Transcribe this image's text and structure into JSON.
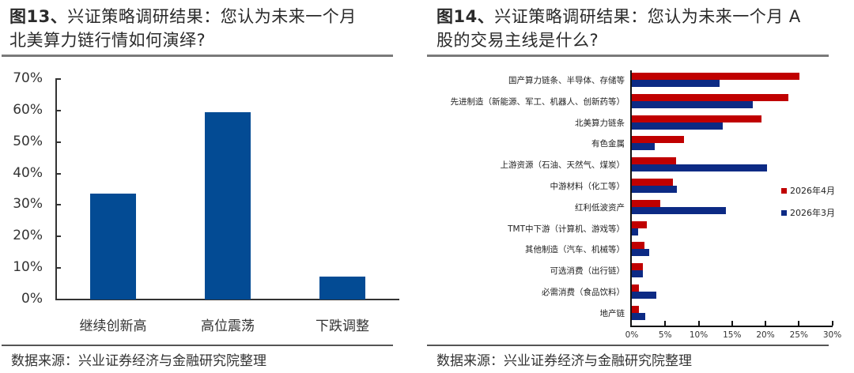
{
  "left": {
    "title_prefix": "图13、",
    "title_line1": "兴证策略调研结果：您认为未来一个月",
    "title_line2": "北美算力链行情如何演绎?",
    "source": "数据来源：兴业证券经济与金融研究院整理",
    "y_ticks": [
      "70%",
      "60%",
      "50%",
      "40%",
      "30%",
      "20%",
      "10%",
      "0%"
    ]
  },
  "right": {
    "title_prefix": "图14、",
    "title_line1": "兴证策略调研结果：您认为未来一个月 A",
    "title_line2": "股的交易主线是什么?",
    "source": "数据来源：兴业证券经济与金融研究院整理",
    "x_ticks": [
      "0%",
      "5%",
      "10%",
      "15%",
      "20%",
      "25%",
      "30%"
    ],
    "legend": [
      {
        "label": "2026年4月",
        "color": "#c00000"
      },
      {
        "label": "2026年3月",
        "color": "#0c2a84"
      }
    ]
  },
  "chart_data": [
    {
      "type": "bar",
      "title": "图13、兴证策略调研结果：您认为未来一个月北美算力链行情如何演绎?",
      "categories": [
        "继续创新高",
        "高位震荡",
        "下跌调整"
      ],
      "values": [
        33.5,
        59.5,
        7.3
      ],
      "xlabel": "",
      "ylabel": "",
      "ylim": [
        0,
        70
      ],
      "y_unit": "%",
      "y_ticks": [
        0,
        10,
        20,
        30,
        40,
        50,
        60,
        70
      ],
      "grid": false,
      "color": "#034b94"
    },
    {
      "type": "bar",
      "orientation": "horizontal",
      "title": "图14、兴证策略调研结果：您认为未来一个月 A 股的交易主线是什么?",
      "categories": [
        "国产算力链条、半导体、存储等",
        "先进制造（新能源、军工、机器人、创新药等）",
        "北美算力链条",
        "有色金属",
        "上游资源（石油、天然气、煤炭）",
        "中游材料（化工等）",
        "红利低波资产",
        "TMT中下游（计算机、游戏等）",
        "其他制造（汽车、机械等）",
        "可选消费（出行链）",
        "必需消费（食品饮料）",
        "地产链"
      ],
      "series": [
        {
          "name": "2026年4月",
          "color": "#c00000",
          "values": [
            25.1,
            23.4,
            19.4,
            7.8,
            6.6,
            6.1,
            4.3,
            2.2,
            1.9,
            1.7,
            1.1,
            1.1
          ]
        },
        {
          "name": "2026年3月",
          "color": "#0c2a84",
          "values": [
            13.1,
            18.1,
            13.6,
            3.4,
            20.2,
            6.8,
            14.1,
            1.0,
            2.6,
            1.6,
            3.7,
            2.0
          ]
        }
      ],
      "xlim": [
        0,
        30
      ],
      "x_unit": "%",
      "x_ticks": [
        0,
        5,
        10,
        15,
        20,
        25,
        30
      ],
      "legend_position": "right",
      "grid": false
    }
  ]
}
